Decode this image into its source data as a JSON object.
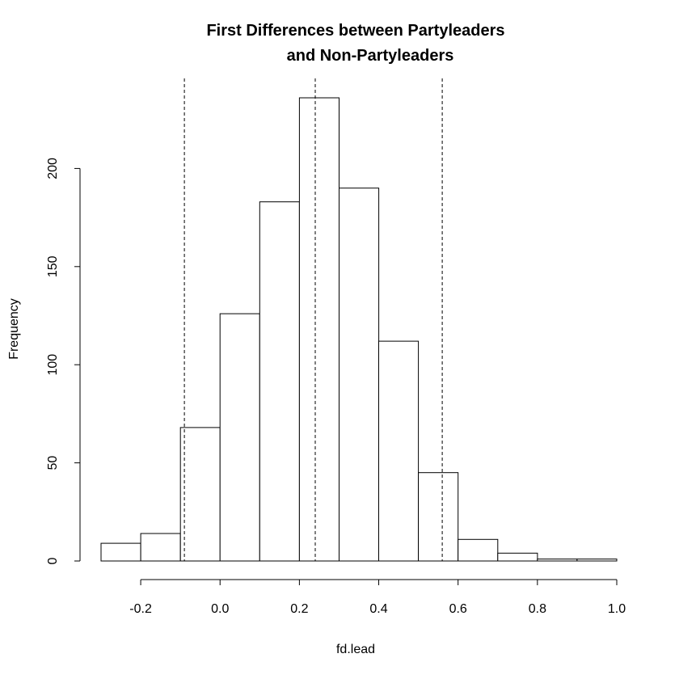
{
  "chart_data": {
    "type": "bar",
    "title": [
      "First Differences between Partyleaders",
      "and Non-Partyleaders"
    ],
    "xlabel": "fd.lead",
    "ylabel": "Frequency",
    "bins": [
      {
        "from": -0.3,
        "to": -0.2,
        "count": 9
      },
      {
        "from": -0.2,
        "to": -0.1,
        "count": 14
      },
      {
        "from": -0.1,
        "to": 0.0,
        "count": 68
      },
      {
        "from": 0.0,
        "to": 0.1,
        "count": 126
      },
      {
        "from": 0.1,
        "to": 0.2,
        "count": 183
      },
      {
        "from": 0.2,
        "to": 0.3,
        "count": 236
      },
      {
        "from": 0.3,
        "to": 0.4,
        "count": 190
      },
      {
        "from": 0.4,
        "to": 0.5,
        "count": 112
      },
      {
        "from": 0.5,
        "to": 0.6,
        "count": 45
      },
      {
        "from": 0.6,
        "to": 0.7,
        "count": 11
      },
      {
        "from": 0.7,
        "to": 0.8,
        "count": 4
      },
      {
        "from": 0.8,
        "to": 0.9,
        "count": 1
      },
      {
        "from": 0.9,
        "to": 1.0,
        "count": 1
      }
    ],
    "x_ticks": [
      -0.2,
      0.0,
      0.2,
      0.4,
      0.6,
      0.8,
      1.0
    ],
    "x_tick_labels": [
      "-0.2",
      "0.0",
      "0.2",
      "0.4",
      "0.6",
      "0.8",
      "1.0"
    ],
    "y_ticks": [
      0,
      50,
      100,
      150,
      200
    ],
    "y_tick_labels": [
      "0",
      "50",
      "100",
      "150",
      "200"
    ],
    "reference_lines": [
      -0.09,
      0.24,
      0.56
    ],
    "xlim": [
      -0.3,
      1.0
    ],
    "ylim": [
      0,
      236
    ],
    "grid": false
  }
}
